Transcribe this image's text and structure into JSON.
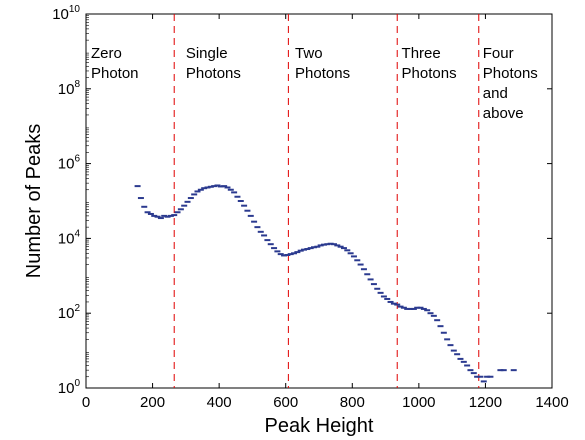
{
  "chart_data": {
    "type": "scatter",
    "title": "",
    "xlabel": "Peak Height",
    "ylabel": "Number of Peaks",
    "xlim": [
      0,
      1400
    ],
    "ylim": [
      1,
      10000000000
    ],
    "yscale": "log",
    "grid": false,
    "marker_color": "#2b3a8f",
    "divider_color": "#e00000",
    "x_ticks": [
      "0",
      "200",
      "400",
      "600",
      "800",
      "1000",
      "1200",
      "1400"
    ],
    "y_ticks": [
      {
        "base": "10",
        "exp": "0",
        "value": 1
      },
      {
        "base": "10",
        "exp": "2",
        "value": 100
      },
      {
        "base": "10",
        "exp": "4",
        "value": 10000
      },
      {
        "base": "10",
        "exp": "6",
        "value": 1000000
      },
      {
        "base": "10",
        "exp": "8",
        "value": 100000000
      },
      {
        "base": "10",
        "exp": "10",
        "value": 10000000000
      }
    ],
    "dividers": [
      265,
      608,
      935,
      1180
    ],
    "regions": [
      {
        "x": 15,
        "lines": [
          "Zero",
          "Photon"
        ]
      },
      {
        "x": 300,
        "lines": [
          "Single",
          "Photons"
        ]
      },
      {
        "x": 628,
        "lines": [
          "Two",
          "Photons"
        ]
      },
      {
        "x": 948,
        "lines": [
          "Three",
          "Photons"
        ]
      },
      {
        "x": 1192,
        "lines": [
          "Four",
          "Photons",
          "and",
          "above"
        ]
      }
    ],
    "series": [
      {
        "x": [
          155,
          165,
          175,
          185,
          195,
          205,
          215,
          225,
          235,
          245,
          255,
          265,
          275,
          285,
          295,
          305,
          315,
          325,
          335,
          345,
          355,
          365,
          375,
          385,
          395,
          405,
          415,
          425,
          435,
          445,
          455,
          465,
          475,
          485,
          495,
          505,
          515,
          525,
          535,
          545,
          555,
          565,
          575,
          585,
          595,
          605,
          615,
          625,
          635,
          645,
          655,
          665,
          675,
          685,
          695,
          705,
          715,
          725,
          735,
          745,
          755,
          765,
          775,
          785,
          795,
          805,
          815,
          825,
          835,
          845,
          855,
          865,
          875,
          885,
          895,
          905,
          915,
          925,
          935,
          945,
          955,
          965,
          975,
          985,
          995,
          1005,
          1015,
          1025,
          1035,
          1045,
          1055,
          1065,
          1075,
          1085,
          1095,
          1105,
          1115,
          1125,
          1135,
          1145,
          1155,
          1165,
          1175,
          1185,
          1195,
          1205,
          1215,
          1245,
          1255,
          1285
        ],
        "y": [
          250000,
          120000,
          70000,
          50000,
          45000,
          40000,
          38000,
          35000,
          40000,
          38000,
          40000,
          42000,
          50000,
          60000,
          75000,
          95000,
          120000,
          150000,
          180000,
          200000,
          220000,
          230000,
          240000,
          250000,
          260000,
          245000,
          250000,
          230000,
          200000,
          170000,
          130000,
          100000,
          75000,
          55000,
          40000,
          28000,
          20000,
          15000,
          12000,
          9000,
          7000,
          5500,
          4500,
          3800,
          3500,
          3600,
          3800,
          4000,
          4300,
          4700,
          5000,
          5200,
          5500,
          5800,
          6000,
          6500,
          6800,
          7000,
          7200,
          7000,
          6500,
          6000,
          5500,
          4800,
          4000,
          3300,
          2600,
          2000,
          1500,
          1100,
          800,
          600,
          450,
          350,
          280,
          240,
          200,
          180,
          170,
          150,
          140,
          130,
          130,
          130,
          140,
          140,
          130,
          120,
          100,
          85,
          65,
          45,
          30,
          20,
          14,
          10,
          8,
          6,
          5,
          4,
          3,
          2.5,
          2,
          2,
          1.5,
          2,
          2,
          3,
          3,
          3
        ]
      }
    ]
  }
}
